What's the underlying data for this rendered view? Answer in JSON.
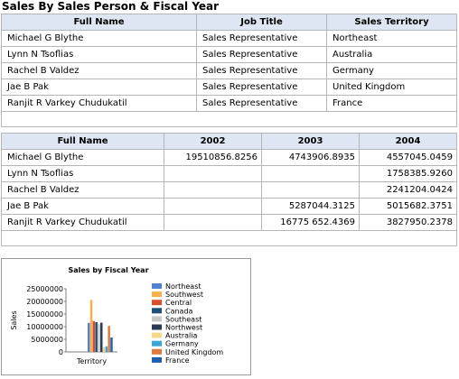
{
  "report": {
    "title": "Sales By Sales Person & Fiscal Year"
  },
  "people_table": {
    "headers": [
      "Full Name",
      "Job Title",
      "Sales Territory"
    ],
    "rows": [
      [
        "Michael G Blythe",
        "Sales Representative",
        "Northeast"
      ],
      [
        "Lynn N Tsoflias",
        "Sales Representative",
        "Australia"
      ],
      [
        "Rachel B Valdez",
        "Sales Representative",
        "Germany"
      ],
      [
        "Jae B Pak",
        "Sales Representative",
        "United Kingdom"
      ],
      [
        "Ranjit R Varkey Chudukatil",
        "Sales Representative",
        "France"
      ]
    ]
  },
  "sales_table": {
    "headers": [
      "Full Name",
      "2002",
      "2003",
      "2004"
    ],
    "rows": [
      [
        "Michael G Blythe",
        "19510856.8256",
        "4743906.8935",
        "4557045.0459"
      ],
      [
        "Lynn N Tsoflias",
        "",
        "",
        "1758385.9260"
      ],
      [
        "Rachel B Valdez",
        "",
        "",
        "2241204.0424"
      ],
      [
        "Jae B Pak",
        "",
        "5287044.3125",
        "5015682.3751"
      ],
      [
        "Ranjit R Varkey Chudukatil",
        "",
        "16775 652.4369",
        "3827950.2378"
      ]
    ]
  },
  "chart_data": {
    "type": "bar",
    "title": "Sales by Fiscal Year",
    "xlabel": "Territory",
    "ylabel": "Sales",
    "ylim": [
      0,
      25000000
    ],
    "yticks": [
      "25000000",
      "20000000",
      "15000000",
      "10000000",
      "5000000",
      "0"
    ],
    "categories": [
      ""
    ],
    "series": [
      {
        "name": "Northeast",
        "color": "#4f81d4",
        "values": [
          11500000
        ]
      },
      {
        "name": "Southwest",
        "color": "#f7b04a",
        "values": [
          20600000
        ]
      },
      {
        "name": "Central",
        "color": "#d94f2b",
        "values": [
          12200000
        ]
      },
      {
        "name": "Canada",
        "color": "#1f4e79",
        "values": [
          11800000
        ]
      },
      {
        "name": "Southeast",
        "color": "#c8c8c8",
        "values": [
          11000000
        ]
      },
      {
        "name": "Northwest",
        "color": "#2b3a55",
        "values": [
          11600000
        ]
      },
      {
        "name": "Australia",
        "color": "#f5d98a",
        "values": [
          1800000
        ]
      },
      {
        "name": "Germany",
        "color": "#3aa6d8",
        "values": [
          2200000
        ]
      },
      {
        "name": "United Kingdom",
        "color": "#e07a3f",
        "values": [
          10300000
        ]
      },
      {
        "name": "France",
        "color": "#1f5fb0",
        "values": [
          5700000
        ]
      }
    ]
  }
}
